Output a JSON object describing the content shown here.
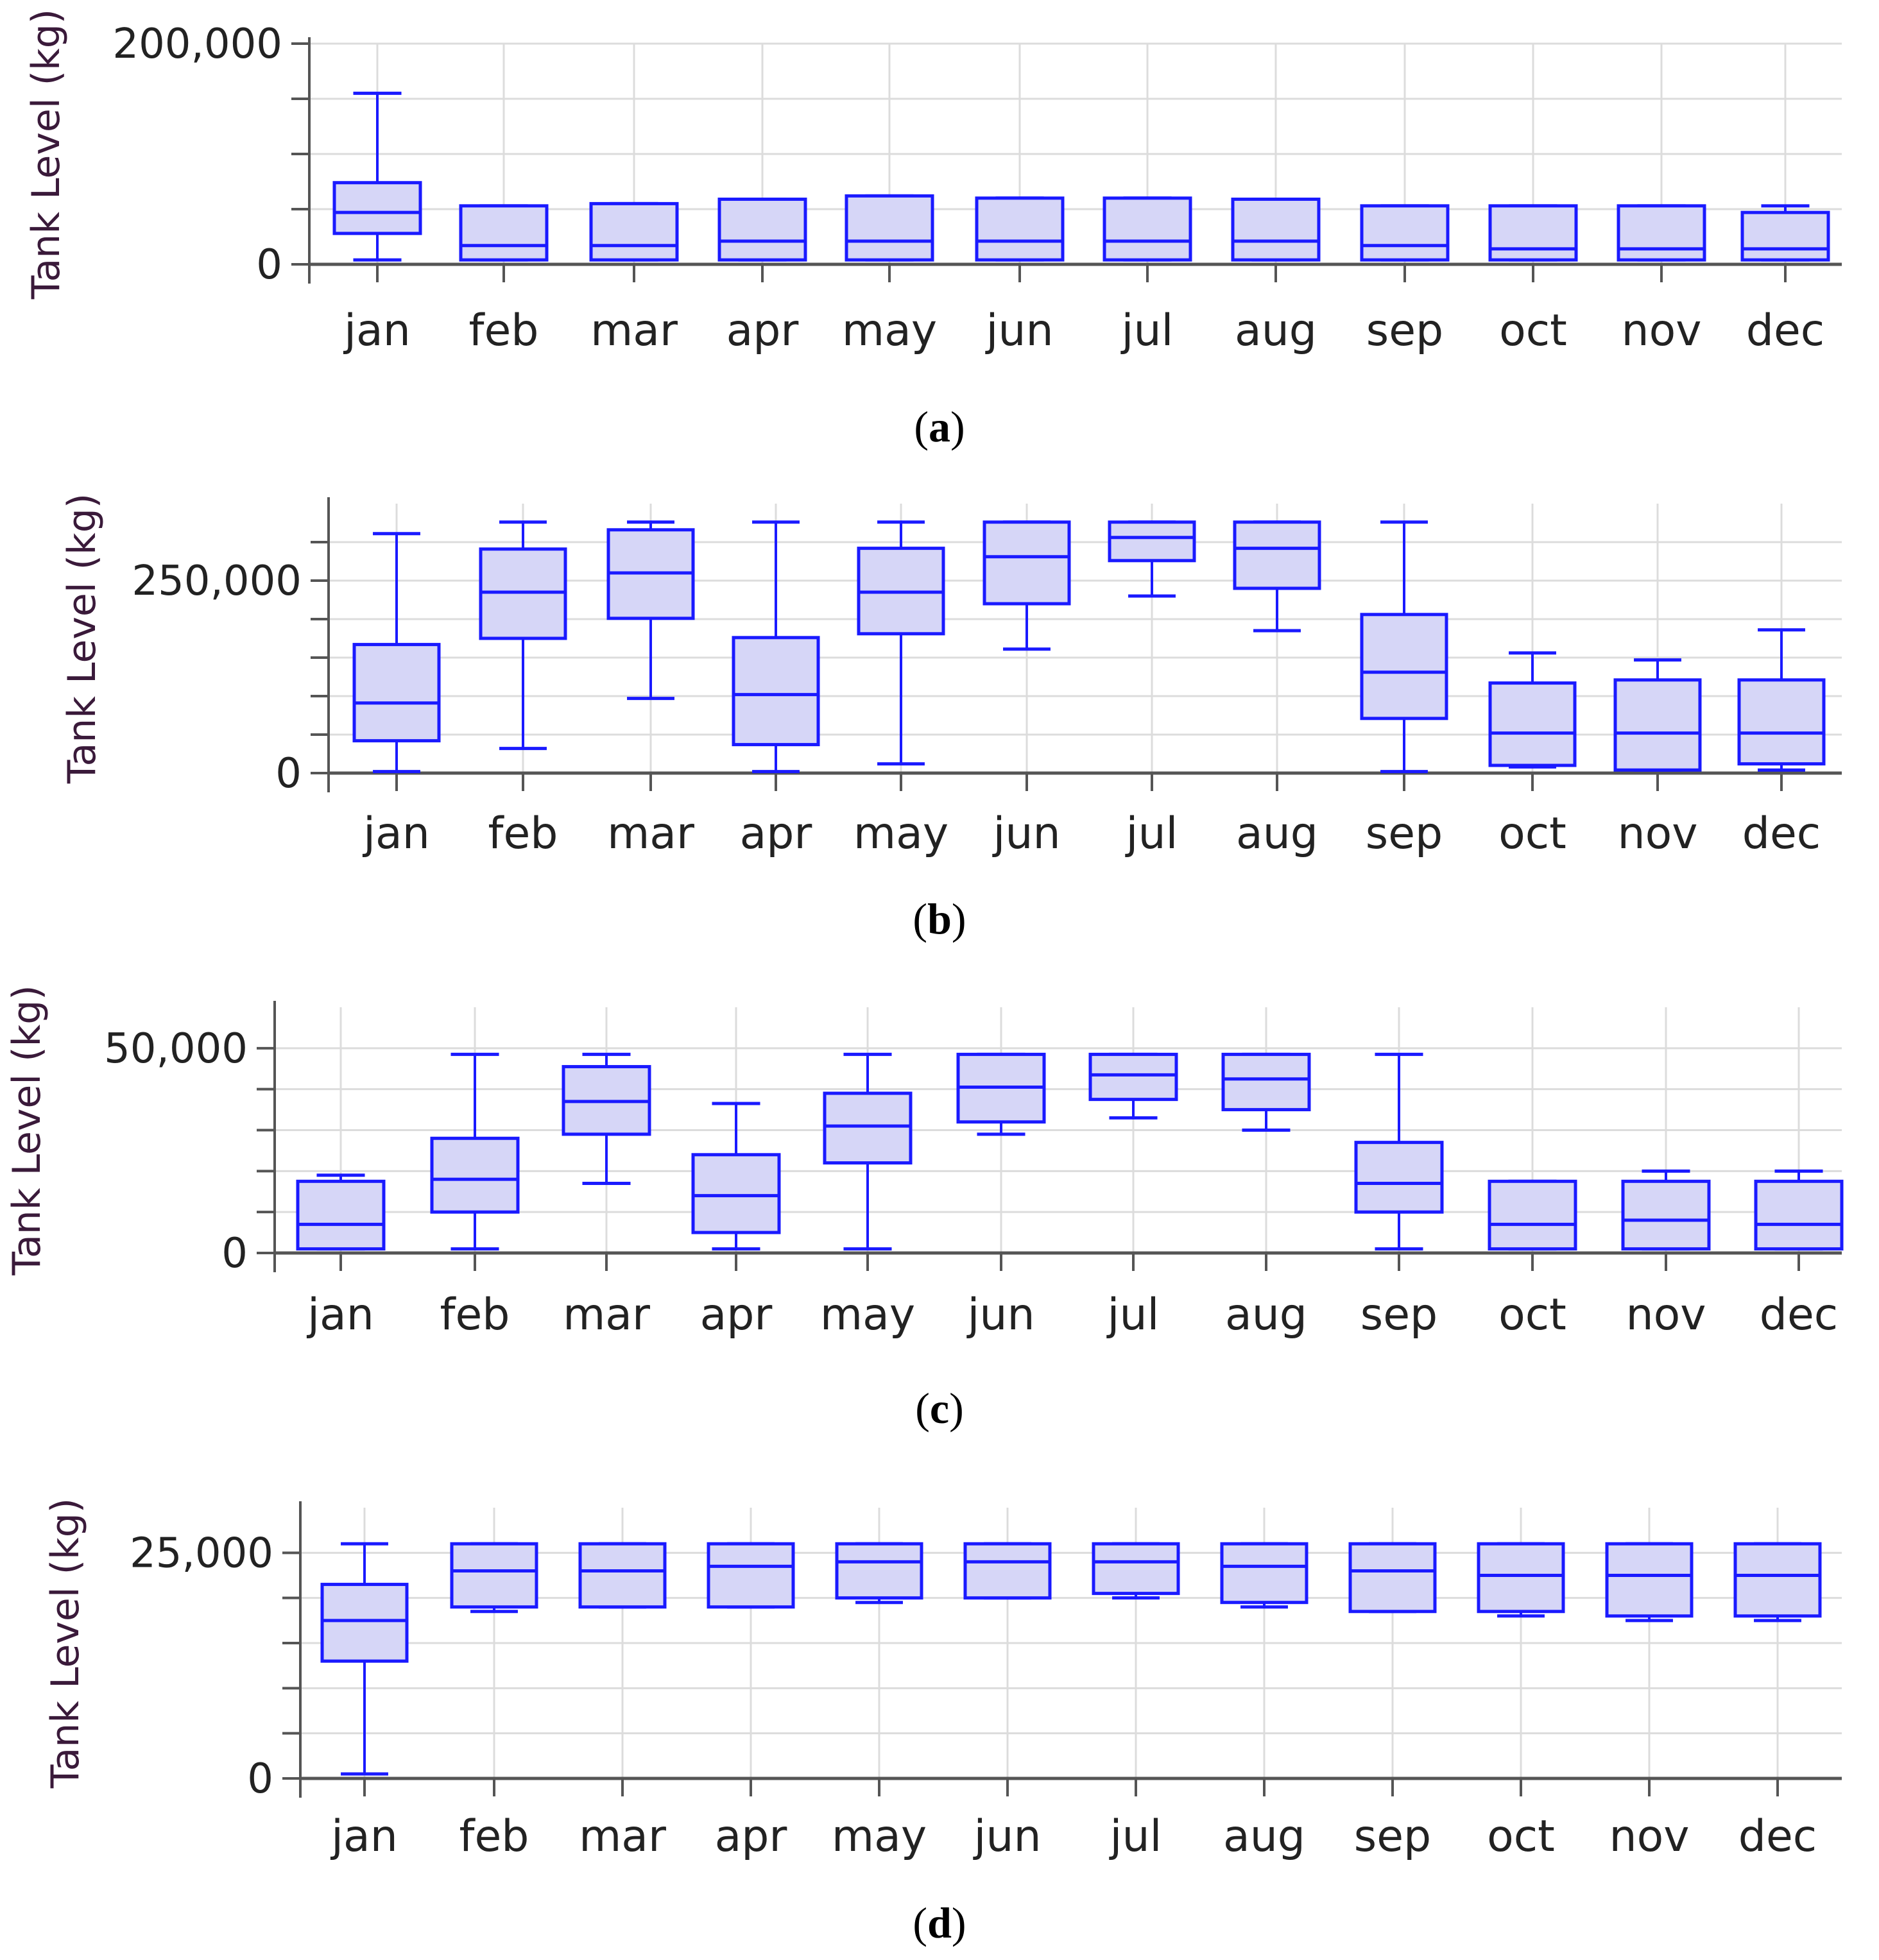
{
  "figure": {
    "ylabel": "Tank Level (kg)",
    "colors": {
      "box_stroke": "#1a1aff",
      "box_fill": "#d6d6f7",
      "grid": "#dcdcdc",
      "axis": "#555555"
    }
  },
  "chart_data": [
    {
      "type": "boxplot",
      "panel": "a",
      "caption_letter": "a",
      "ylabel": "Tank Level (kg)",
      "ylim": [
        0,
        200000
      ],
      "yticks": [
        0,
        200000
      ],
      "ytick_labels": [
        "0",
        "200,000"
      ],
      "minor_ticks": [
        50000,
        100000,
        150000
      ],
      "categories": [
        "jan",
        "feb",
        "mar",
        "apr",
        "may",
        "jun",
        "jul",
        "aug",
        "sep",
        "oct",
        "nov",
        "dec"
      ],
      "boxes": [
        {
          "min": 4000,
          "q1": 28000,
          "median": 47000,
          "q3": 74000,
          "max": 155000
        },
        {
          "min": 4000,
          "q1": 4000,
          "median": 17000,
          "q3": 53000,
          "max": 53000
        },
        {
          "min": 4000,
          "q1": 4000,
          "median": 17000,
          "q3": 55000,
          "max": 55000
        },
        {
          "min": 4000,
          "q1": 4000,
          "median": 21000,
          "q3": 59000,
          "max": 59000
        },
        {
          "min": 4000,
          "q1": 4000,
          "median": 21000,
          "q3": 62000,
          "max": 62000
        },
        {
          "min": 4000,
          "q1": 4000,
          "median": 21000,
          "q3": 60000,
          "max": 60000
        },
        {
          "min": 4000,
          "q1": 4000,
          "median": 21000,
          "q3": 60000,
          "max": 60000
        },
        {
          "min": 4000,
          "q1": 4000,
          "median": 21000,
          "q3": 59000,
          "max": 59000
        },
        {
          "min": 4000,
          "q1": 4000,
          "median": 17000,
          "q3": 53000,
          "max": 53000
        },
        {
          "min": 4000,
          "q1": 4000,
          "median": 14000,
          "q3": 53000,
          "max": 53000
        },
        {
          "min": 4000,
          "q1": 4000,
          "median": 14000,
          "q3": 53000,
          "max": 53000
        },
        {
          "min": 4000,
          "q1": 4000,
          "median": 14000,
          "q3": 47000,
          "max": 53000
        }
      ]
    },
    {
      "type": "boxplot",
      "panel": "b",
      "caption_letter": "b",
      "ylabel": "Tank Level (kg)",
      "ylim": [
        0,
        350000
      ],
      "yticks": [
        0,
        250000
      ],
      "ytick_labels": [
        "0",
        "250,000"
      ],
      "minor_ticks": [
        50000,
        100000,
        150000,
        200000,
        300000
      ],
      "categories": [
        "jan",
        "feb",
        "mar",
        "apr",
        "may",
        "jun",
        "jul",
        "aug",
        "sep",
        "oct",
        "nov",
        "dec"
      ],
      "boxes": [
        {
          "min": 2000,
          "q1": 42000,
          "median": 91000,
          "q3": 167000,
          "max": 311000
        },
        {
          "min": 32000,
          "q1": 175000,
          "median": 235000,
          "q3": 291000,
          "max": 326000
        },
        {
          "min": 97000,
          "q1": 201000,
          "median": 260000,
          "q3": 316000,
          "max": 326000
        },
        {
          "min": 2000,
          "q1": 37000,
          "median": 102000,
          "q3": 176000,
          "max": 326000
        },
        {
          "min": 12000,
          "q1": 181000,
          "median": 235000,
          "q3": 292000,
          "max": 326000
        },
        {
          "min": 161000,
          "q1": 220000,
          "median": 281000,
          "q3": 326000,
          "max": 326000
        },
        {
          "min": 230000,
          "q1": 276000,
          "median": 306000,
          "q3": 326000,
          "max": 326000
        },
        {
          "min": 185000,
          "q1": 240000,
          "median": 292000,
          "q3": 326000,
          "max": 326000
        },
        {
          "min": 2000,
          "q1": 71000,
          "median": 131000,
          "q3": 206000,
          "max": 326000
        },
        {
          "min": 8000,
          "q1": 10000,
          "median": 52000,
          "q3": 117000,
          "max": 156000
        },
        {
          "min": 4000,
          "q1": 4000,
          "median": 52000,
          "q3": 121000,
          "max": 147000
        },
        {
          "min": 4000,
          "q1": 12000,
          "median": 52000,
          "q3": 121000,
          "max": 186000
        }
      ]
    },
    {
      "type": "boxplot",
      "panel": "c",
      "caption_letter": "c",
      "ylabel": "Tank Level (kg)",
      "ylim": [
        0,
        60000
      ],
      "yticks": [
        0,
        50000
      ],
      "ytick_labels": [
        "0",
        "50,000"
      ],
      "minor_ticks": [
        10000,
        20000,
        30000,
        40000
      ],
      "categories": [
        "jan",
        "feb",
        "mar",
        "apr",
        "may",
        "jun",
        "jul",
        "aug",
        "sep",
        "oct",
        "nov",
        "dec"
      ],
      "boxes": [
        {
          "min": 1000,
          "q1": 1000,
          "median": 7000,
          "q3": 17500,
          "max": 19000
        },
        {
          "min": 1000,
          "q1": 10000,
          "median": 18000,
          "q3": 28000,
          "max": 48500
        },
        {
          "min": 17000,
          "q1": 29000,
          "median": 37000,
          "q3": 45500,
          "max": 48500
        },
        {
          "min": 1000,
          "q1": 5000,
          "median": 14000,
          "q3": 24000,
          "max": 36500
        },
        {
          "min": 1000,
          "q1": 22000,
          "median": 31000,
          "q3": 39000,
          "max": 48500
        },
        {
          "min": 29000,
          "q1": 32000,
          "median": 40500,
          "q3": 48500,
          "max": 48500
        },
        {
          "min": 33000,
          "q1": 37500,
          "median": 43500,
          "q3": 48500,
          "max": 48500
        },
        {
          "min": 30000,
          "q1": 35000,
          "median": 42500,
          "q3": 48500,
          "max": 48500
        },
        {
          "min": 1000,
          "q1": 10000,
          "median": 17000,
          "q3": 27000,
          "max": 48500
        },
        {
          "min": 1000,
          "q1": 1000,
          "median": 7000,
          "q3": 17500,
          "max": 17500
        },
        {
          "min": 1000,
          "q1": 1000,
          "median": 8000,
          "q3": 17500,
          "max": 20000
        },
        {
          "min": 1000,
          "q1": 1000,
          "median": 7000,
          "q3": 17500,
          "max": 20000
        }
      ]
    },
    {
      "type": "boxplot",
      "panel": "d",
      "caption_letter": "d",
      "ylabel": "Tank Level (kg)",
      "ylim": [
        0,
        30000
      ],
      "yticks": [
        0,
        25000
      ],
      "ytick_labels": [
        "0",
        "25,000"
      ],
      "minor_ticks": [
        5000,
        10000,
        15000,
        20000
      ],
      "categories": [
        "jan",
        "feb",
        "mar",
        "apr",
        "may",
        "jun",
        "jul",
        "aug",
        "sep",
        "oct",
        "nov",
        "dec"
      ],
      "boxes": [
        {
          "min": 500,
          "q1": 13000,
          "median": 17500,
          "q3": 21500,
          "max": 26000
        },
        {
          "min": 18500,
          "q1": 19000,
          "median": 23000,
          "q3": 26000,
          "max": 26000
        },
        {
          "min": 19000,
          "q1": 19000,
          "median": 23000,
          "q3": 26000,
          "max": 26000
        },
        {
          "min": 19000,
          "q1": 19000,
          "median": 23500,
          "q3": 26000,
          "max": 26000
        },
        {
          "min": 19500,
          "q1": 20000,
          "median": 24000,
          "q3": 26000,
          "max": 26000
        },
        {
          "min": 20000,
          "q1": 20000,
          "median": 24000,
          "q3": 26000,
          "max": 26000
        },
        {
          "min": 20000,
          "q1": 20500,
          "median": 24000,
          "q3": 26000,
          "max": 26000
        },
        {
          "min": 19000,
          "q1": 19500,
          "median": 23500,
          "q3": 26000,
          "max": 26000
        },
        {
          "min": 18500,
          "q1": 18500,
          "median": 23000,
          "q3": 26000,
          "max": 26000
        },
        {
          "min": 18000,
          "q1": 18500,
          "median": 22500,
          "q3": 26000,
          "max": 26000
        },
        {
          "min": 17500,
          "q1": 18000,
          "median": 22500,
          "q3": 26000,
          "max": 26000
        },
        {
          "min": 17500,
          "q1": 18000,
          "median": 22500,
          "q3": 26000,
          "max": 26000
        }
      ]
    }
  ]
}
